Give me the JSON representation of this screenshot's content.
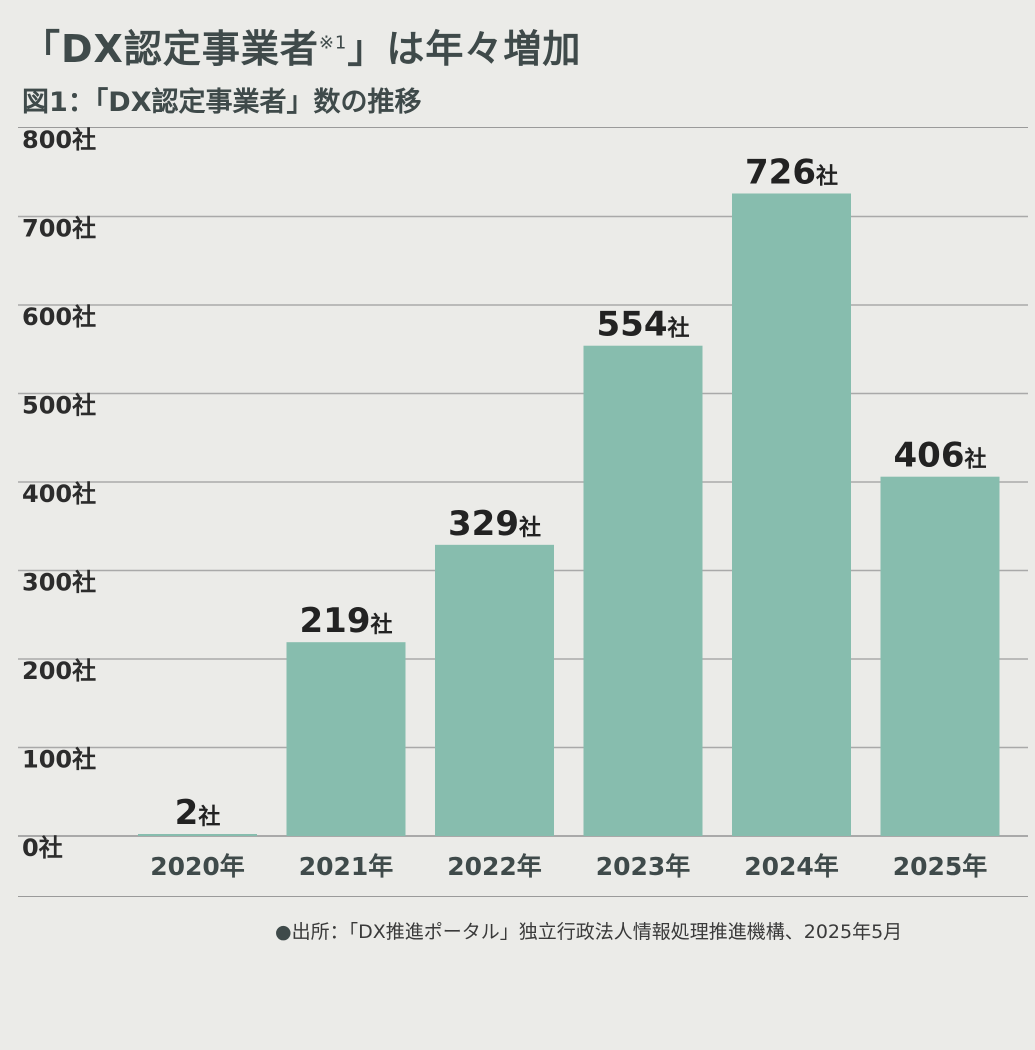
{
  "header": {
    "headline": "「DX認定事業者",
    "headline_note": "※1",
    "headline_end": "」は年々増加",
    "subtitle": "図1：「DX認定事業者」数の推移"
  },
  "chart_data": {
    "type": "bar",
    "categories": [
      "2020年",
      "2021年",
      "2022年",
      "2023年",
      "2024年",
      "2025年"
    ],
    "values": [
      2,
      219,
      329,
      554,
      726,
      406
    ],
    "value_unit": "社",
    "ylim": [
      0,
      800
    ],
    "yticks": [
      0,
      100,
      200,
      300,
      400,
      500,
      600,
      700,
      800
    ],
    "ytick_unit": "社",
    "grid": true,
    "bar_color": "#87bdae",
    "grid_color": "#a9a9a9"
  },
  "footer": {
    "bullet": "●",
    "source": "出所：「DX推進ポータル」独立行政法人情報処理推進機構、2025年5月"
  }
}
